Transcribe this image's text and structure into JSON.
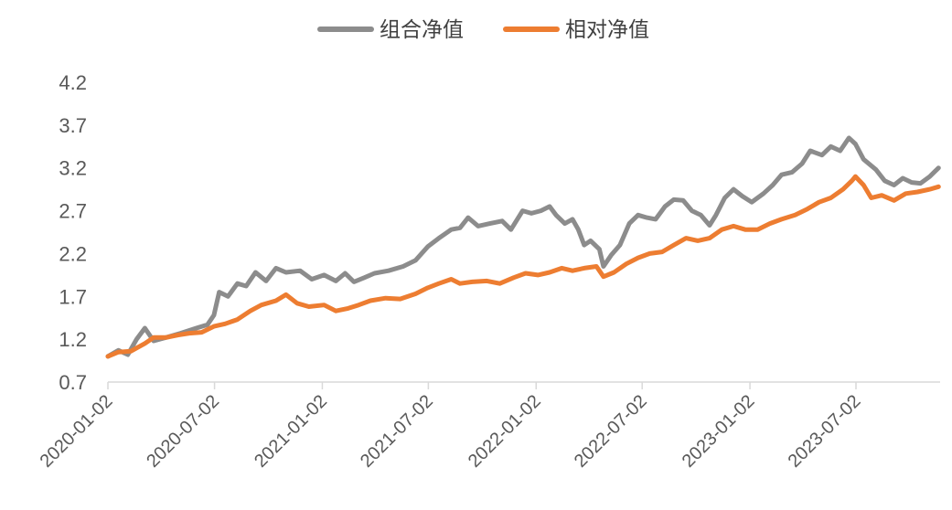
{
  "chart_data": {
    "type": "line",
    "title": "",
    "xlabel": "",
    "ylabel": "",
    "x_range": [
      "2020-01-02",
      "2023-11-20"
    ],
    "x_ticks": [
      "2020-01-02",
      "2020-07-02",
      "2021-01-02",
      "2021-07-02",
      "2022-01-02",
      "2022-07-02",
      "2023-01-02",
      "2023-07-02"
    ],
    "ylim": [
      0.7,
      4.2
    ],
    "y_ticks": [
      "0.7",
      "1.2",
      "1.7",
      "2.2",
      "2.7",
      "3.2",
      "3.7",
      "4.2"
    ],
    "grid": false,
    "legend_position": "top-center",
    "series": [
      {
        "name": "组合净值",
        "color": "#8c8c8c",
        "points": [
          [
            "2020-01-02",
            1.0
          ],
          [
            "2020-01-20",
            1.07
          ],
          [
            "2020-02-05",
            1.02
          ],
          [
            "2020-02-20",
            1.2
          ],
          [
            "2020-03-05",
            1.33
          ],
          [
            "2020-03-20",
            1.18
          ],
          [
            "2020-04-10",
            1.22
          ],
          [
            "2020-05-05",
            1.27
          ],
          [
            "2020-06-01",
            1.33
          ],
          [
            "2020-06-20",
            1.37
          ],
          [
            "2020-07-01",
            1.48
          ],
          [
            "2020-07-10",
            1.75
          ],
          [
            "2020-07-25",
            1.7
          ],
          [
            "2020-08-10",
            1.85
          ],
          [
            "2020-08-25",
            1.82
          ],
          [
            "2020-09-10",
            1.98
          ],
          [
            "2020-09-28",
            1.88
          ],
          [
            "2020-10-15",
            2.03
          ],
          [
            "2020-11-01",
            1.98
          ],
          [
            "2020-11-25",
            2.0
          ],
          [
            "2020-12-15",
            1.9
          ],
          [
            "2021-01-05",
            1.95
          ],
          [
            "2021-01-25",
            1.88
          ],
          [
            "2021-02-10",
            1.97
          ],
          [
            "2021-02-25",
            1.87
          ],
          [
            "2021-03-15",
            1.92
          ],
          [
            "2021-04-01",
            1.97
          ],
          [
            "2021-04-25",
            2.0
          ],
          [
            "2021-05-20",
            2.05
          ],
          [
            "2021-06-10",
            2.12
          ],
          [
            "2021-07-01",
            2.28
          ],
          [
            "2021-07-20",
            2.38
          ],
          [
            "2021-08-10",
            2.48
          ],
          [
            "2021-08-25",
            2.5
          ],
          [
            "2021-09-08",
            2.62
          ],
          [
            "2021-09-25",
            2.52
          ],
          [
            "2021-10-15",
            2.55
          ],
          [
            "2021-11-05",
            2.58
          ],
          [
            "2021-11-20",
            2.48
          ],
          [
            "2021-12-10",
            2.7
          ],
          [
            "2021-12-25",
            2.67
          ],
          [
            "2022-01-10",
            2.7
          ],
          [
            "2022-01-25",
            2.75
          ],
          [
            "2022-02-05",
            2.65
          ],
          [
            "2022-02-20",
            2.55
          ],
          [
            "2022-03-05",
            2.6
          ],
          [
            "2022-03-15",
            2.48
          ],
          [
            "2022-03-25",
            2.3
          ],
          [
            "2022-04-05",
            2.35
          ],
          [
            "2022-04-20",
            2.25
          ],
          [
            "2022-04-27",
            2.05
          ],
          [
            "2022-05-10",
            2.18
          ],
          [
            "2022-05-25",
            2.3
          ],
          [
            "2022-06-10",
            2.55
          ],
          [
            "2022-06-25",
            2.65
          ],
          [
            "2022-07-10",
            2.62
          ],
          [
            "2022-07-25",
            2.6
          ],
          [
            "2022-08-10",
            2.75
          ],
          [
            "2022-08-25",
            2.83
          ],
          [
            "2022-09-10",
            2.82
          ],
          [
            "2022-09-25",
            2.7
          ],
          [
            "2022-10-10",
            2.65
          ],
          [
            "2022-10-25",
            2.53
          ],
          [
            "2022-11-05",
            2.65
          ],
          [
            "2022-11-20",
            2.85
          ],
          [
            "2022-12-05",
            2.95
          ],
          [
            "2022-12-20",
            2.87
          ],
          [
            "2023-01-05",
            2.8
          ],
          [
            "2023-01-25",
            2.9
          ],
          [
            "2023-02-10",
            3.0
          ],
          [
            "2023-02-25",
            3.12
          ],
          [
            "2023-03-15",
            3.15
          ],
          [
            "2023-04-01",
            3.25
          ],
          [
            "2023-04-15",
            3.4
          ],
          [
            "2023-05-05",
            3.35
          ],
          [
            "2023-05-20",
            3.45
          ],
          [
            "2023-06-05",
            3.4
          ],
          [
            "2023-06-20",
            3.55
          ],
          [
            "2023-07-01",
            3.48
          ],
          [
            "2023-07-15",
            3.3
          ],
          [
            "2023-08-05",
            3.18
          ],
          [
            "2023-08-20",
            3.05
          ],
          [
            "2023-09-05",
            3.0
          ],
          [
            "2023-09-20",
            3.08
          ],
          [
            "2023-10-05",
            3.03
          ],
          [
            "2023-10-20",
            3.02
          ],
          [
            "2023-11-05",
            3.1
          ],
          [
            "2023-11-20",
            3.2
          ]
        ]
      },
      {
        "name": "相对净值",
        "color": "#ed7d31",
        "points": [
          [
            "2020-01-02",
            1.0
          ],
          [
            "2020-01-20",
            1.05
          ],
          [
            "2020-02-10",
            1.06
          ],
          [
            "2020-03-05",
            1.15
          ],
          [
            "2020-03-20",
            1.22
          ],
          [
            "2020-04-10",
            1.22
          ],
          [
            "2020-05-01",
            1.25
          ],
          [
            "2020-05-20",
            1.27
          ],
          [
            "2020-06-10",
            1.28
          ],
          [
            "2020-07-01",
            1.35
          ],
          [
            "2020-07-20",
            1.38
          ],
          [
            "2020-08-10",
            1.43
          ],
          [
            "2020-09-01",
            1.53
          ],
          [
            "2020-09-20",
            1.6
          ],
          [
            "2020-10-15",
            1.65
          ],
          [
            "2020-11-01",
            1.72
          ],
          [
            "2020-11-20",
            1.62
          ],
          [
            "2020-12-10",
            1.58
          ],
          [
            "2021-01-05",
            1.6
          ],
          [
            "2021-01-25",
            1.53
          ],
          [
            "2021-02-15",
            1.56
          ],
          [
            "2021-03-05",
            1.6
          ],
          [
            "2021-03-25",
            1.65
          ],
          [
            "2021-04-20",
            1.68
          ],
          [
            "2021-05-15",
            1.67
          ],
          [
            "2021-06-10",
            1.73
          ],
          [
            "2021-07-01",
            1.8
          ],
          [
            "2021-07-20",
            1.85
          ],
          [
            "2021-08-10",
            1.9
          ],
          [
            "2021-08-25",
            1.85
          ],
          [
            "2021-09-15",
            1.87
          ],
          [
            "2021-10-10",
            1.88
          ],
          [
            "2021-11-01",
            1.85
          ],
          [
            "2021-11-25",
            1.92
          ],
          [
            "2021-12-15",
            1.97
          ],
          [
            "2022-01-05",
            1.95
          ],
          [
            "2022-01-25",
            1.98
          ],
          [
            "2022-02-15",
            2.03
          ],
          [
            "2022-03-05",
            2.0
          ],
          [
            "2022-03-25",
            2.03
          ],
          [
            "2022-04-15",
            2.05
          ],
          [
            "2022-04-27",
            1.93
          ],
          [
            "2022-05-15",
            1.98
          ],
          [
            "2022-06-05",
            2.08
          ],
          [
            "2022-06-25",
            2.15
          ],
          [
            "2022-07-15",
            2.2
          ],
          [
            "2022-08-05",
            2.22
          ],
          [
            "2022-08-25",
            2.3
          ],
          [
            "2022-09-15",
            2.38
          ],
          [
            "2022-10-05",
            2.35
          ],
          [
            "2022-10-25",
            2.38
          ],
          [
            "2022-11-15",
            2.48
          ],
          [
            "2022-12-05",
            2.52
          ],
          [
            "2022-12-25",
            2.48
          ],
          [
            "2023-01-15",
            2.48
          ],
          [
            "2023-02-05",
            2.55
          ],
          [
            "2023-02-25",
            2.6
          ],
          [
            "2023-03-20",
            2.65
          ],
          [
            "2023-04-10",
            2.72
          ],
          [
            "2023-04-30",
            2.8
          ],
          [
            "2023-05-20",
            2.85
          ],
          [
            "2023-06-10",
            2.95
          ],
          [
            "2023-06-25",
            3.05
          ],
          [
            "2023-07-01",
            3.1
          ],
          [
            "2023-07-15",
            3.0
          ],
          [
            "2023-07-28",
            2.85
          ],
          [
            "2023-08-15",
            2.88
          ],
          [
            "2023-09-05",
            2.82
          ],
          [
            "2023-09-25",
            2.9
          ],
          [
            "2023-10-15",
            2.92
          ],
          [
            "2023-11-05",
            2.95
          ],
          [
            "2023-11-20",
            2.98
          ]
        ]
      }
    ]
  }
}
